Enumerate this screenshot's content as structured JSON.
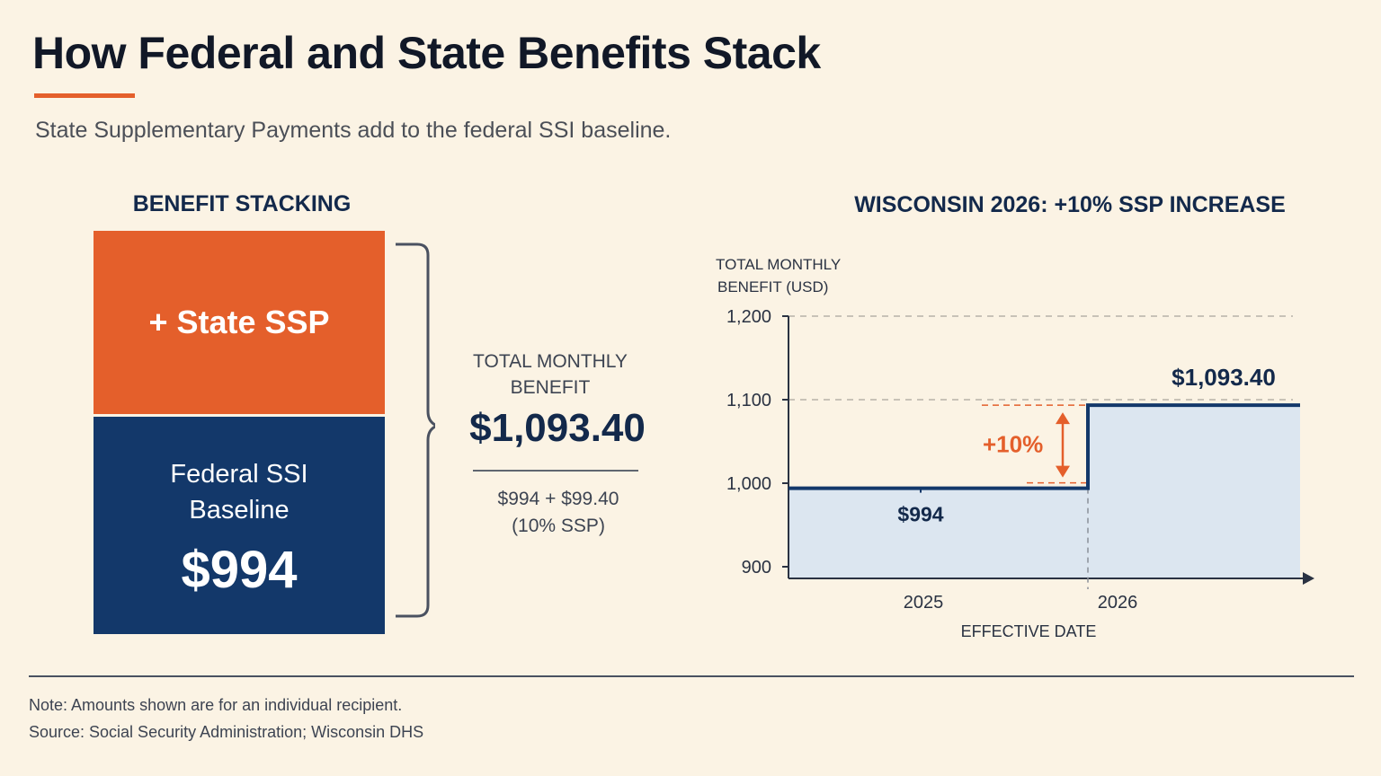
{
  "title": "How Federal and State Benefits Stack",
  "subtitle": "State Supplementary Payments add to the federal SSI baseline.",
  "colors": {
    "accent_orange": "#e45f2b",
    "navy": "#13386a",
    "area_fill": "#dce6f0",
    "background": "#fbf3e4"
  },
  "stacking": {
    "heading": "BENEFIT STACKING",
    "top_label": "+ State SSP",
    "bottom_label_line1": "Federal SSI",
    "bottom_label_line2": "Baseline",
    "bottom_value": "$994"
  },
  "total": {
    "label_line1": "TOTAL MONTHLY",
    "label_line2": "BENEFIT",
    "value": "$1,093.40",
    "calc_line1": "$994 + $99.40",
    "calc_line2": "(10% SSP)"
  },
  "chart_data": {
    "type": "line",
    "step": true,
    "area_fill": true,
    "title": "WISCONSIN 2026: +10% SSP INCREASE",
    "ylabel_line1": "TOTAL MONTHLY",
    "ylabel_line2": "BENEFIT (USD)",
    "xlabel": "EFFECTIVE DATE",
    "ylim": [
      900,
      1200
    ],
    "y_ticks": [
      1200,
      1100,
      1000,
      900
    ],
    "y_tick_labels": [
      "1,200",
      "1,100",
      "1,000",
      "900"
    ],
    "categories": [
      "2025",
      "2026"
    ],
    "values": [
      994,
      1093.4
    ],
    "data_labels": [
      "$994",
      "$1,093.40"
    ],
    "annotation": "+10%",
    "reference_lines": [
      1200,
      1100
    ]
  },
  "footer": {
    "note": "Note: Amounts shown are for an individual recipient.",
    "source": "Source: Social Security Administration; Wisconsin DHS"
  }
}
